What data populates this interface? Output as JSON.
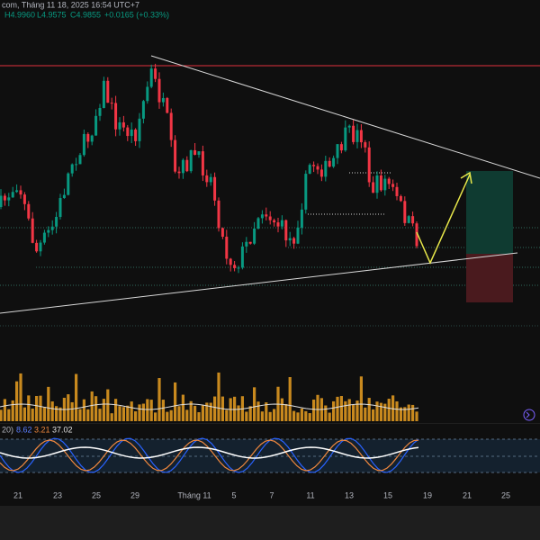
{
  "header": {
    "source": "com, Tháng 11 18, 2025 16:54 UTC+7",
    "high": "H4.9960",
    "low": "L4.9575",
    "close": "C4.9855",
    "change": "+0.0165 (+0.33%)"
  },
  "oscillator": {
    "label": "20)",
    "values": [
      "8.62",
      "3.21",
      "37.02"
    ]
  },
  "time_axis": [
    "21",
    "23",
    "25",
    "29",
    "Tháng 11",
    "5",
    "7",
    "11",
    "13",
    "15",
    "19",
    "21",
    "25"
  ]
}
